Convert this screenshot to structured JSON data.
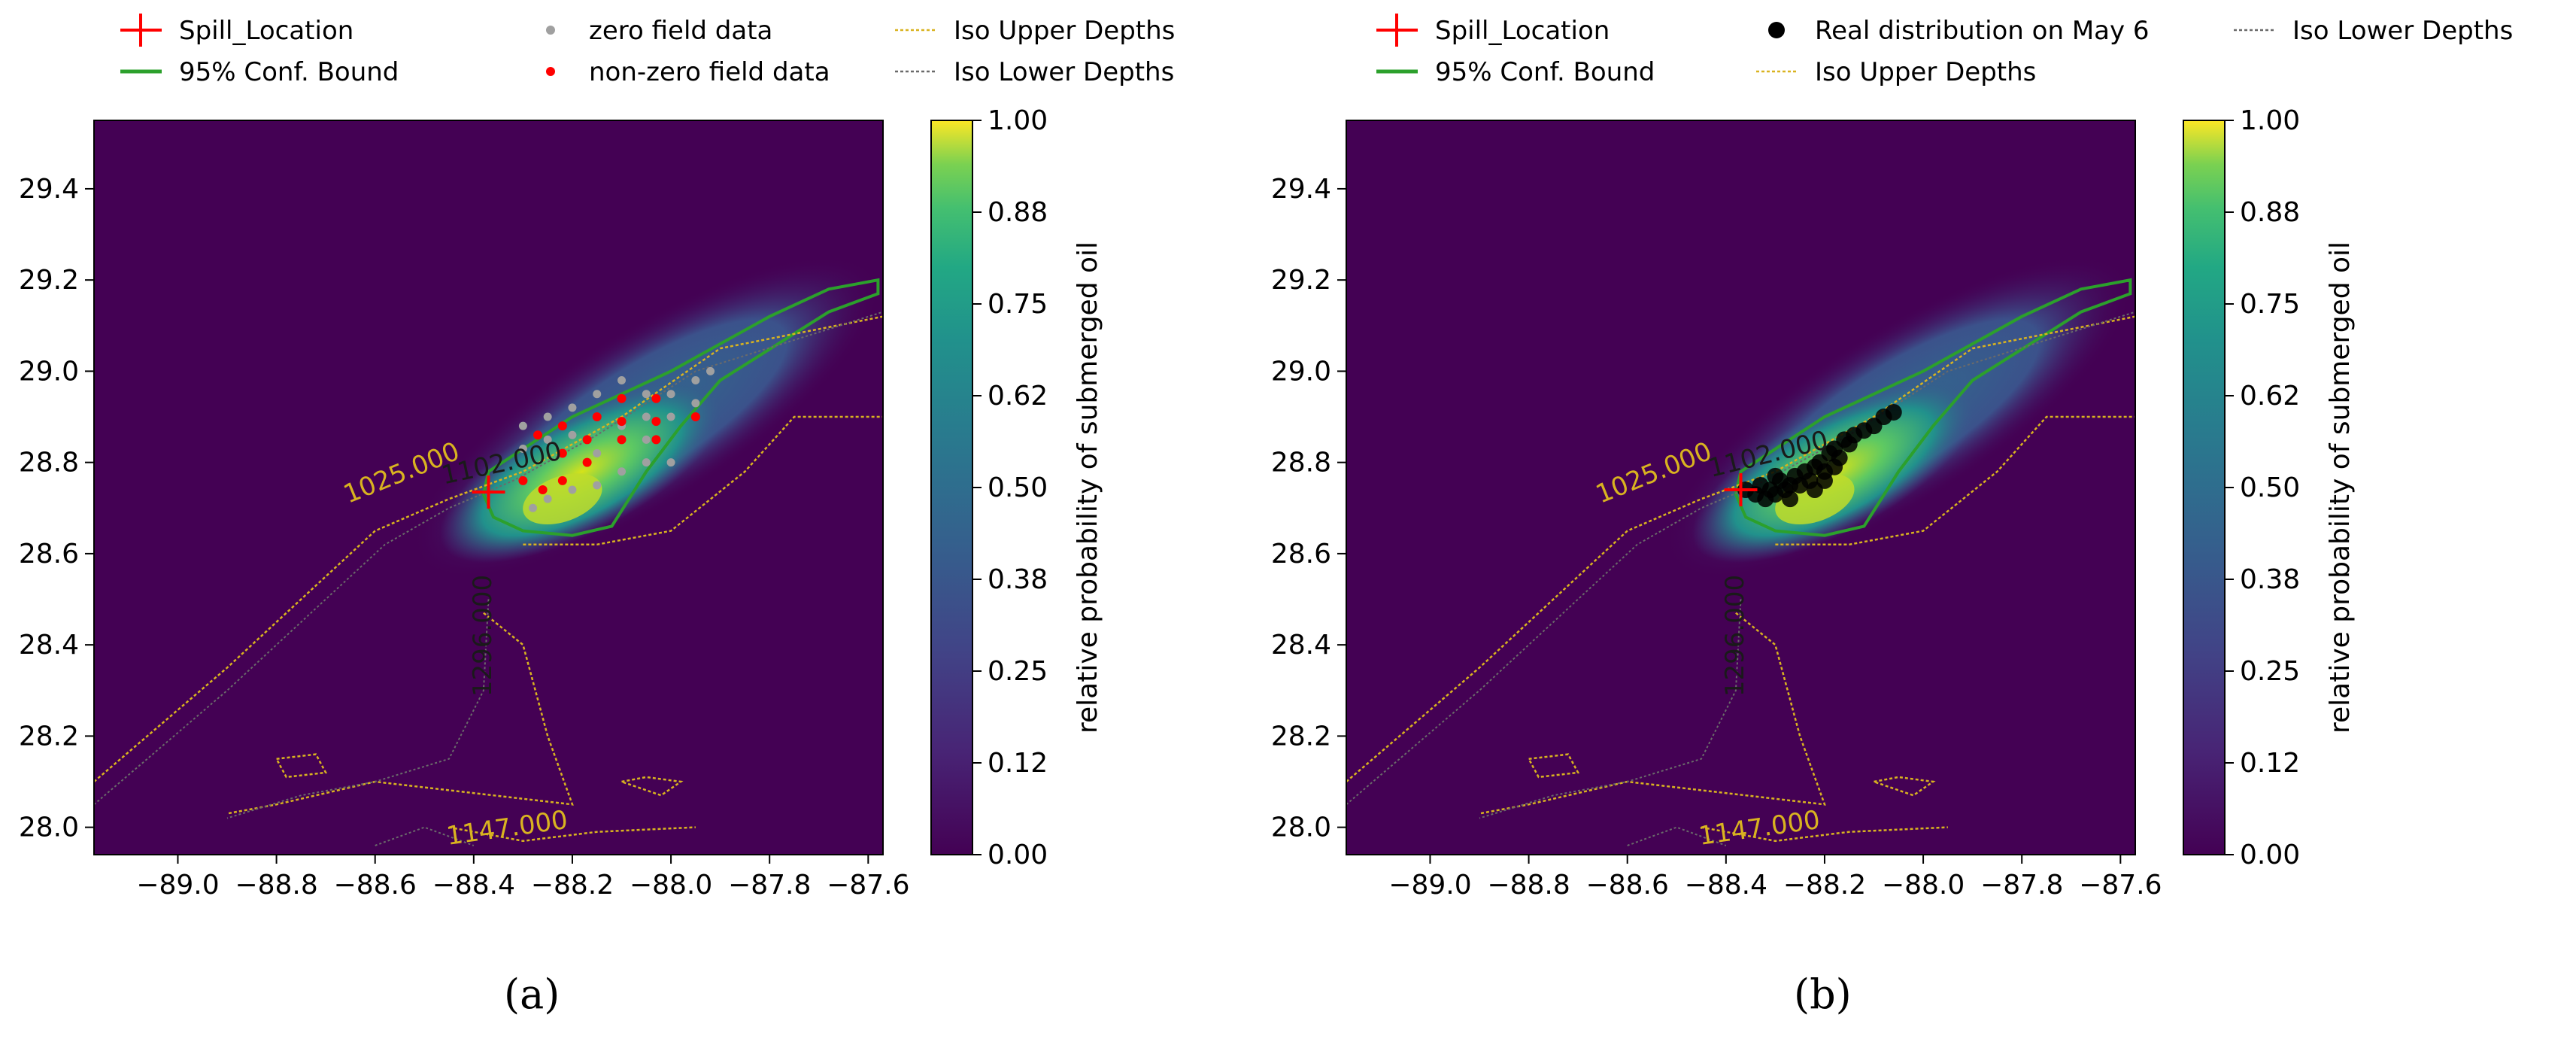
{
  "colorbar_label": "relative probability of submerged oil",
  "colorbar_ticks": [
    "0.00",
    "0.12",
    "0.25",
    "0.38",
    "0.50",
    "0.62",
    "0.75",
    "0.88",
    "1.00"
  ],
  "colors": {
    "background_field": "#440154",
    "spill_marker": "#ff0000",
    "confidence_bound": "#2ca02c",
    "iso_upper": "#d9b320",
    "iso_lower": "#6a6a6a",
    "zero_points": "#a0a0a0",
    "nonzero_points": "#ff0000",
    "real_points": "#000000"
  },
  "chart_data": [
    {
      "type": "heatmap",
      "panel_label": "(a)",
      "x_ticks": [
        "−89.0",
        "−88.8",
        "−88.6",
        "−88.4",
        "−88.2",
        "−88.0",
        "−87.8",
        "−87.6"
      ],
      "y_ticks": [
        "28.0",
        "28.2",
        "28.4",
        "28.6",
        "28.8",
        "29.0",
        "29.2",
        "29.4"
      ],
      "xlim": [
        -89.17,
        -87.57
      ],
      "ylim": [
        27.94,
        29.55
      ],
      "legend": [
        {
          "label": "Spill_Location",
          "style": "cross"
        },
        {
          "label": "zero field data",
          "style": "dot-gray"
        },
        {
          "label": "Iso Upper Depths",
          "style": "dash-gold"
        },
        {
          "label": "95% Conf. Bound",
          "style": "line-green"
        },
        {
          "label": "non-zero field data",
          "style": "dot-red"
        },
        {
          "label": "Iso Lower Depths",
          "style": "dash-gray"
        }
      ],
      "contour_labels": [
        {
          "text": "1025.000",
          "x": -88.54,
          "y": 28.76,
          "rot": -22,
          "style": "gold"
        },
        {
          "text": "1102.000",
          "x": -88.34,
          "y": 28.78,
          "rot": -12,
          "style": "dark"
        },
        {
          "text": "1296.000",
          "x": -88.365,
          "y": 28.42,
          "rot": -90,
          "style": "dark"
        },
        {
          "text": "1147.000",
          "x": -88.33,
          "y": 27.98,
          "rot": -8,
          "style": "gold"
        }
      ],
      "spill_location": {
        "x": -88.37,
        "y": 28.735
      },
      "zero_field_data": [
        [
          -88.05,
          28.95
        ],
        [
          -88.0,
          28.95
        ],
        [
          -87.95,
          28.98
        ],
        [
          -87.92,
          29.0
        ],
        [
          -88.1,
          28.98
        ],
        [
          -88.15,
          28.95
        ],
        [
          -88.2,
          28.92
        ],
        [
          -88.25,
          28.9
        ],
        [
          -88.3,
          28.88
        ],
        [
          -88.05,
          28.9
        ],
        [
          -88.0,
          28.9
        ],
        [
          -87.95,
          28.93
        ],
        [
          -88.1,
          28.88
        ],
        [
          -88.2,
          28.86
        ],
        [
          -88.25,
          28.85
        ],
        [
          -88.3,
          28.83
        ],
        [
          -88.05,
          28.8
        ],
        [
          -88.0,
          28.8
        ],
        [
          -88.1,
          28.78
        ],
        [
          -88.15,
          28.75
        ],
        [
          -88.2,
          28.74
        ],
        [
          -88.25,
          28.72
        ],
        [
          -88.28,
          28.7
        ],
        [
          -88.05,
          28.85
        ],
        [
          -88.15,
          28.82
        ]
      ],
      "nonzero_field_data": [
        [
          -88.1,
          28.94
        ],
        [
          -88.03,
          28.94
        ],
        [
          -88.15,
          28.9
        ],
        [
          -88.1,
          28.89
        ],
        [
          -88.03,
          28.89
        ],
        [
          -87.95,
          28.9
        ],
        [
          -88.22,
          28.88
        ],
        [
          -88.27,
          28.86
        ],
        [
          -88.17,
          28.85
        ],
        [
          -88.1,
          28.85
        ],
        [
          -88.03,
          28.85
        ],
        [
          -88.22,
          28.82
        ],
        [
          -88.17,
          28.8
        ],
        [
          -88.3,
          28.76
        ],
        [
          -88.22,
          28.76
        ],
        [
          -88.26,
          28.74
        ]
      ]
    },
    {
      "type": "heatmap",
      "panel_label": "(b)",
      "x_ticks": [
        "−89.0",
        "−88.8",
        "−88.6",
        "−88.4",
        "−88.2",
        "−88.0",
        "−87.8",
        "−87.6"
      ],
      "y_ticks": [
        "28.0",
        "28.2",
        "28.4",
        "28.6",
        "28.8",
        "29.0",
        "29.2",
        "29.4"
      ],
      "xlim": [
        -89.17,
        -87.57
      ],
      "ylim": [
        27.94,
        29.55
      ],
      "legend": [
        {
          "label": "Spill_Location",
          "style": "cross"
        },
        {
          "label": "Real distribution on May 6",
          "style": "dot-black"
        },
        {
          "label": "Iso Lower Depths",
          "style": "dash-gray"
        },
        {
          "label": "95% Conf. Bound",
          "style": "line-green"
        },
        {
          "label": "Iso Upper Depths",
          "style": "dash-gold"
        }
      ],
      "contour_labels": [
        {
          "text": "1025.000",
          "x": -88.54,
          "y": 28.76,
          "rot": -22,
          "style": "gold"
        },
        {
          "text": "1102.000",
          "x": -88.31,
          "y": 28.8,
          "rot": -14,
          "style": "dark"
        },
        {
          "text": "1296.000",
          "x": -88.365,
          "y": 28.42,
          "rot": -90,
          "style": "dark"
        },
        {
          "text": "1147.000",
          "x": -88.33,
          "y": 27.98,
          "rot": -8,
          "style": "gold"
        }
      ],
      "spill_location": {
        "x": -88.37,
        "y": 28.74
      },
      "real_distribution": [
        [
          -88.36,
          28.74
        ],
        [
          -88.34,
          28.73
        ],
        [
          -88.33,
          28.75
        ],
        [
          -88.31,
          28.74
        ],
        [
          -88.3,
          28.73
        ],
        [
          -88.29,
          28.76
        ],
        [
          -88.28,
          28.74
        ],
        [
          -88.27,
          28.75
        ],
        [
          -88.26,
          28.77
        ],
        [
          -88.25,
          28.75
        ],
        [
          -88.24,
          28.78
        ],
        [
          -88.23,
          28.76
        ],
        [
          -88.22,
          28.79
        ],
        [
          -88.21,
          28.8
        ],
        [
          -88.2,
          28.78
        ],
        [
          -88.19,
          28.82
        ],
        [
          -88.18,
          28.83
        ],
        [
          -88.17,
          28.81
        ],
        [
          -88.16,
          28.85
        ],
        [
          -88.15,
          28.84
        ],
        [
          -88.14,
          28.86
        ],
        [
          -88.12,
          28.87
        ],
        [
          -88.1,
          28.88
        ],
        [
          -88.08,
          28.9
        ],
        [
          -88.06,
          28.91
        ],
        [
          -88.3,
          28.77
        ],
        [
          -88.27,
          28.72
        ],
        [
          -88.22,
          28.74
        ],
        [
          -88.2,
          28.76
        ],
        [
          -88.32,
          28.72
        ],
        [
          -88.18,
          28.79
        ]
      ]
    }
  ]
}
